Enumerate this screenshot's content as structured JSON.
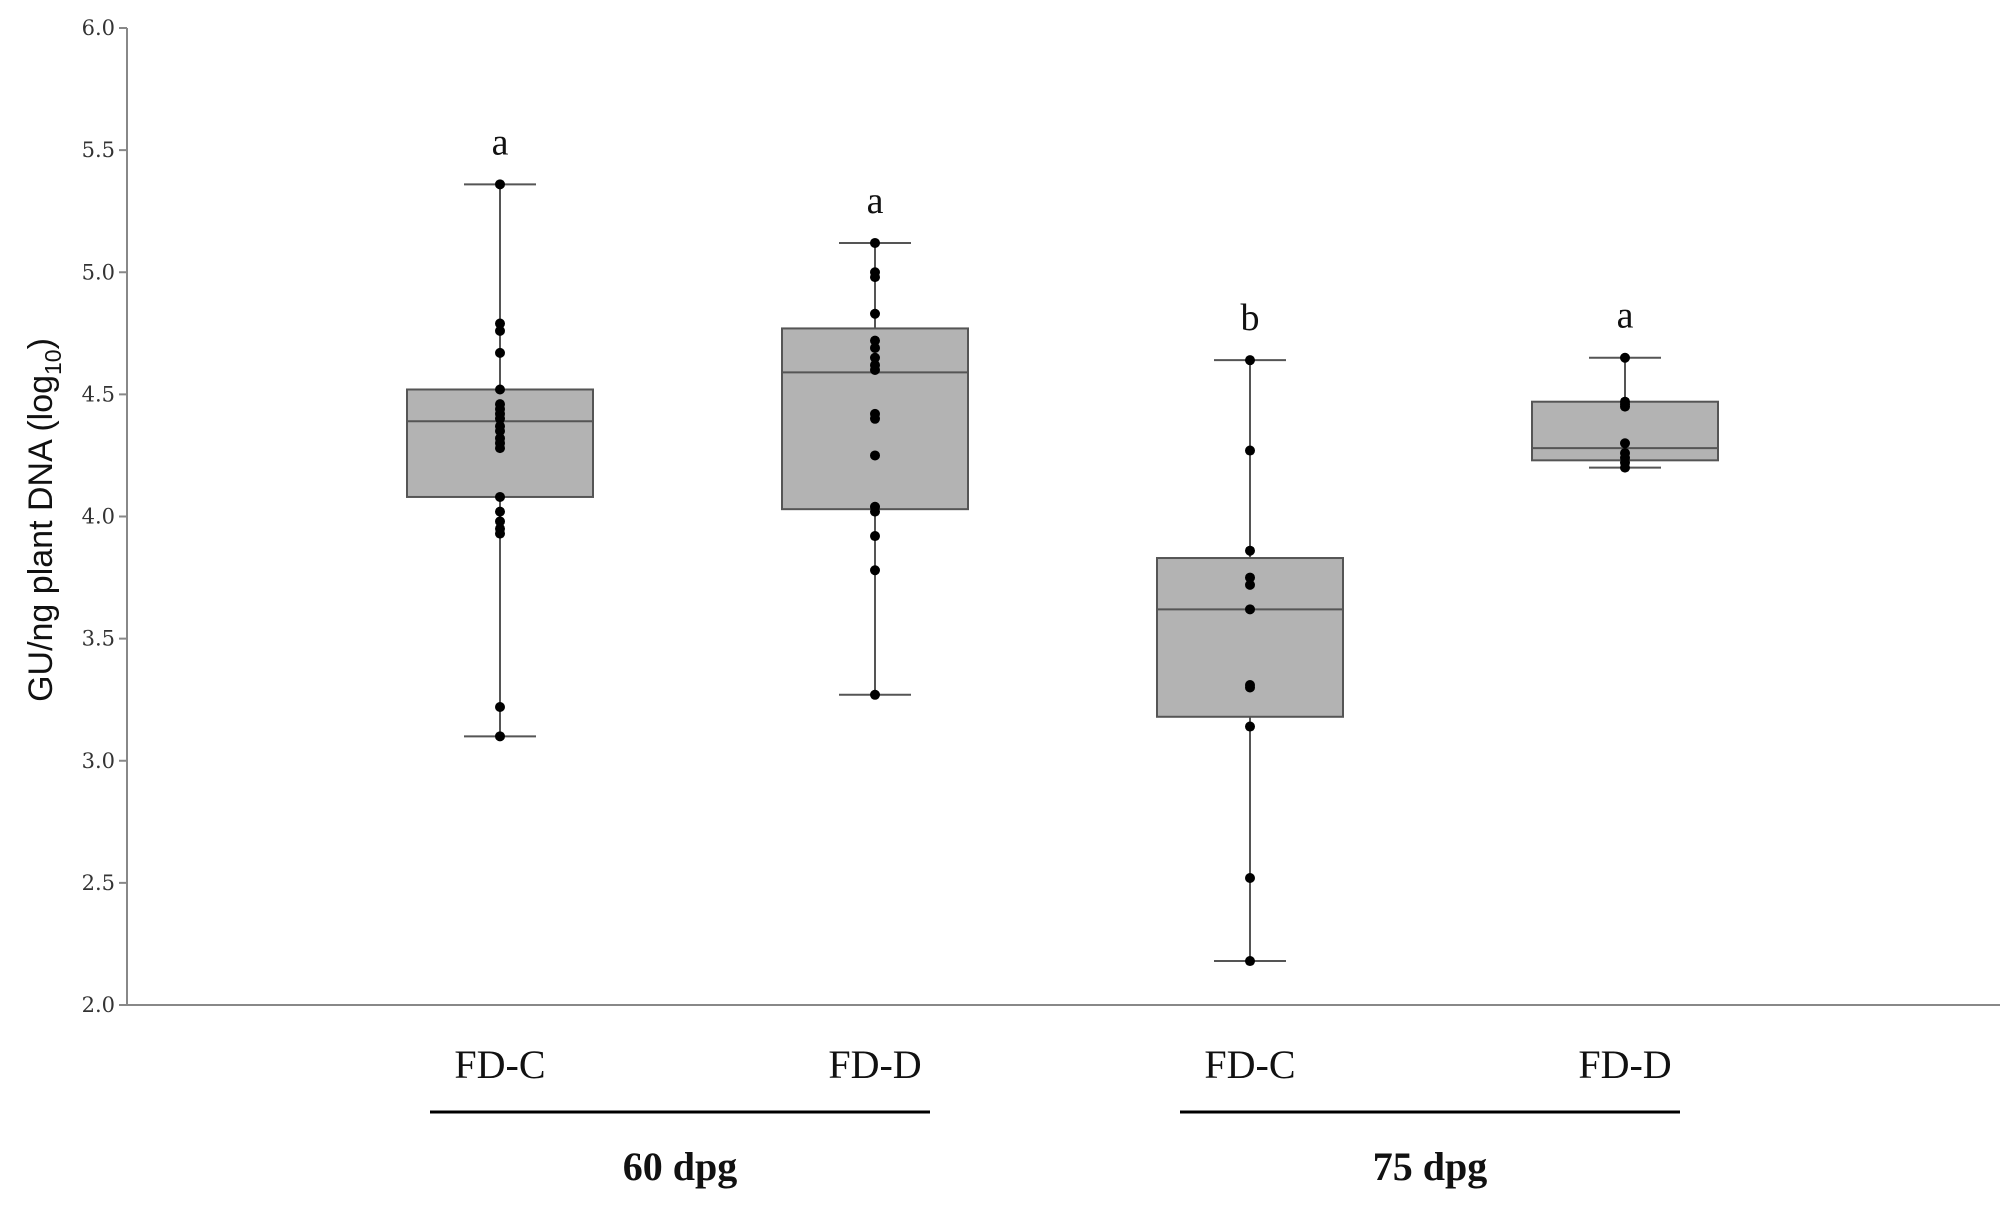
{
  "chart_data": {
    "type": "box",
    "title": "",
    "ylabel": {
      "main": "GU/ng plant DNA (log",
      "subscript": "10",
      "close": ")"
    },
    "xlabel": "",
    "ylim": [
      2.0,
      6.0
    ],
    "yticks": [
      "2.0",
      "2.5",
      "3.0",
      "3.5",
      "4.0",
      "4.5",
      "5.0",
      "5.5",
      "6.0"
    ],
    "ytick_values": [
      2.0,
      2.5,
      3.0,
      3.5,
      4.0,
      4.5,
      5.0,
      5.5,
      6.0
    ],
    "grid": false,
    "groups": [
      {
        "label": "60 dpg",
        "categories": [
          0,
          1
        ]
      },
      {
        "label": "75 dpg",
        "categories": [
          2,
          3
        ]
      }
    ],
    "boxes": [
      {
        "category": "FD-C",
        "group": "60 dpg",
        "significance": "a",
        "whisker_low": 3.1,
        "q1": 4.08,
        "median": 4.39,
        "q3": 4.52,
        "whisker_high": 5.36,
        "points": [
          5.36,
          4.79,
          4.76,
          4.67,
          4.52,
          4.46,
          4.44,
          4.42,
          4.4,
          4.37,
          4.35,
          4.32,
          4.3,
          4.28,
          4.08,
          4.02,
          3.98,
          3.95,
          3.93,
          3.22,
          3.1
        ]
      },
      {
        "category": "FD-D",
        "group": "60 dpg",
        "significance": "a",
        "whisker_low": 3.27,
        "q1": 4.03,
        "median": 4.59,
        "q3": 4.77,
        "whisker_high": 5.12,
        "points": [
          5.12,
          5.0,
          4.98,
          4.83,
          4.72,
          4.69,
          4.65,
          4.62,
          4.6,
          4.42,
          4.4,
          4.25,
          4.04,
          4.02,
          3.92,
          3.78,
          3.27
        ]
      },
      {
        "category": "FD-C",
        "group": "75 dpg",
        "significance": "b",
        "whisker_low": 2.18,
        "q1": 3.18,
        "median": 3.62,
        "q3": 3.83,
        "whisker_high": 4.64,
        "points": [
          4.64,
          4.27,
          3.86,
          3.75,
          3.72,
          3.62,
          3.31,
          3.3,
          3.14,
          2.52,
          2.18
        ]
      },
      {
        "category": "FD-D",
        "group": "75 dpg",
        "significance": "a",
        "whisker_low": 4.2,
        "q1": 4.23,
        "median": 4.28,
        "q3": 4.47,
        "whisker_high": 4.65,
        "points": [
          4.65,
          4.47,
          4.46,
          4.45,
          4.3,
          4.26,
          4.24,
          4.22,
          4.2
        ]
      }
    ]
  },
  "colors": {
    "box_fill": "#b3b3b3",
    "box_stroke": "#555555",
    "point": "#000000",
    "axis": "#888888",
    "group_bar": "#000000"
  }
}
